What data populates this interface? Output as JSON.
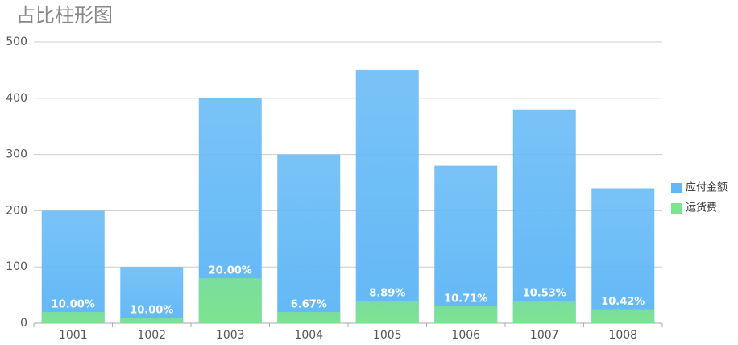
{
  "chart_data": {
    "type": "bar",
    "title": "占比柱形图",
    "categories": [
      "1001",
      "1002",
      "1003",
      "1004",
      "1005",
      "1006",
      "1007",
      "1008"
    ],
    "series": [
      {
        "name": "应付金额",
        "color": "#62b8f6",
        "values": [
          200,
          100,
          400,
          300,
          450,
          280,
          380,
          240
        ]
      },
      {
        "name": "运货费",
        "color": "#7ee38f",
        "values": [
          20,
          10,
          80,
          20,
          40,
          30,
          40,
          25
        ]
      }
    ],
    "percent_labels": [
      "10.00%",
      "10.00%",
      "20.00%",
      "6.67%",
      "8.89%",
      "10.71%",
      "10.53%",
      "10.42%"
    ],
    "ylim": [
      0,
      500
    ],
    "yticks": [
      0,
      100,
      200,
      300,
      400,
      500
    ],
    "grid": true,
    "legend": "right"
  }
}
